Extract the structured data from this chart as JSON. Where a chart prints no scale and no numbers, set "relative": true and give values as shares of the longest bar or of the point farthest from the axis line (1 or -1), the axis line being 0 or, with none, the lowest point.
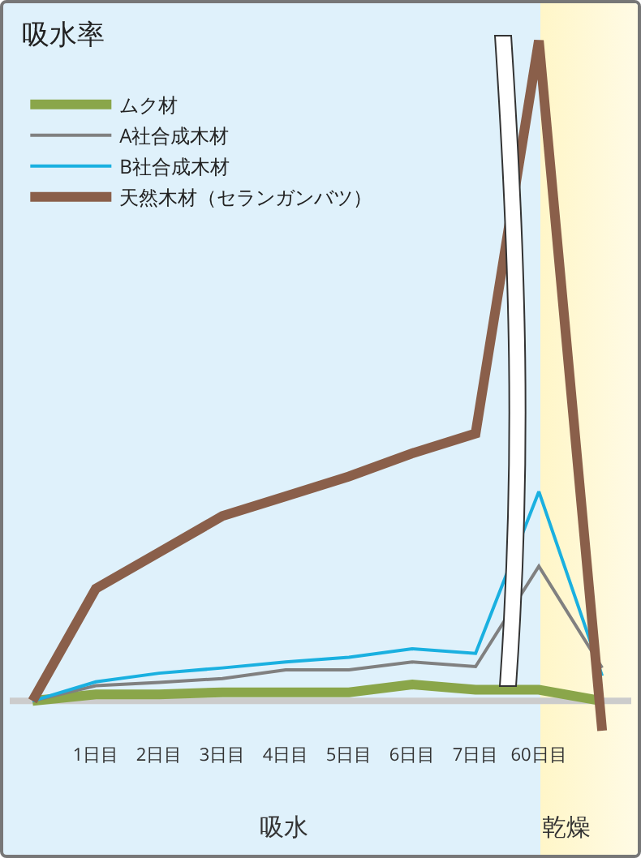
{
  "chart_data": {
    "type": "line",
    "title": "吸水率",
    "relative": true,
    "categories": [
      null,
      "1日目",
      "2日目",
      "3日目",
      "4日目",
      "5日目",
      "6日目",
      "7日目",
      "60日目",
      null
    ],
    "series": [
      {
        "name": "ムク材",
        "color": "#8aa64a",
        "values": [
          0,
          0.01,
          0.01,
          0.013,
          0.013,
          0.013,
          0.025,
          0.017,
          0.017,
          0
        ]
      },
      {
        "name": "A社合成木材",
        "color": "#808080",
        "values": [
          0,
          0.023,
          0.028,
          0.034,
          0.047,
          0.047,
          0.059,
          0.052,
          0.204,
          0.05
        ]
      },
      {
        "name": "B社合成木材",
        "color": "#1ab0e0",
        "values": [
          0,
          0.029,
          0.042,
          0.05,
          0.059,
          0.066,
          0.079,
          0.072,
          0.317,
          0.038
        ]
      },
      {
        "name": "天然木材（セランガンバツ）",
        "color": "#8a5f4a",
        "values": [
          0,
          0.17,
          0.225,
          0.28,
          0.31,
          0.34,
          0.375,
          0.405,
          1,
          -0.045
        ]
      }
    ],
    "annotations": [
      "吸水",
      "乾燥"
    ],
    "legend": "top left",
    "grid": false,
    "marker": "none",
    "line_style": "solid"
  }
}
